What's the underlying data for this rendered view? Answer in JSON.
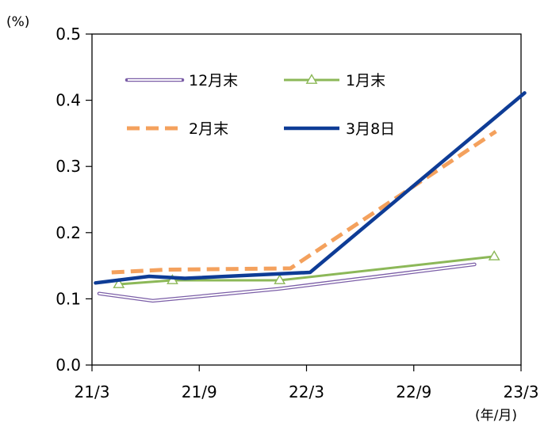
{
  "chart_data": {
    "type": "line",
    "y_unit_label": "(%)",
    "x_unit_label": "(年/月)",
    "ylim": [
      0.0,
      0.5
    ],
    "y_ticks": [
      "0.0",
      "0.1",
      "0.2",
      "0.3",
      "0.4",
      "0.5"
    ],
    "x_ticks": [
      "21/3",
      "21/9",
      "22/3",
      "22/9",
      "23/3"
    ],
    "xlim": [
      0,
      24
    ],
    "grid": false,
    "legend_position": "top-left inside plot",
    "series": [
      {
        "name": "12月末",
        "style": "double-line",
        "color": "#7b5ea7",
        "x": [
          0.4,
          3.4,
          10.4,
          21.4
        ],
        "values": [
          0.108,
          0.097,
          0.115,
          0.152
        ]
      },
      {
        "name": "1月末",
        "style": "triangle-markers",
        "color": "#8cb858",
        "x": [
          1.5,
          4.5,
          10.5,
          22.5
        ],
        "values": [
          0.122,
          0.128,
          0.128,
          0.164
        ]
      },
      {
        "name": "2月末",
        "style": "dashed",
        "color": "#f4a15d",
        "x": [
          1.1,
          4.1,
          11.1,
          22.6
        ],
        "values": [
          0.14,
          0.144,
          0.146,
          0.353
        ]
      },
      {
        "name": "3月8日",
        "style": "solid-thick",
        "color": "#0e3c96",
        "x": [
          0.2,
          3.2,
          5.2,
          12.2,
          24.2
        ],
        "values": [
          0.124,
          0.134,
          0.131,
          0.14,
          0.411
        ]
      }
    ]
  }
}
